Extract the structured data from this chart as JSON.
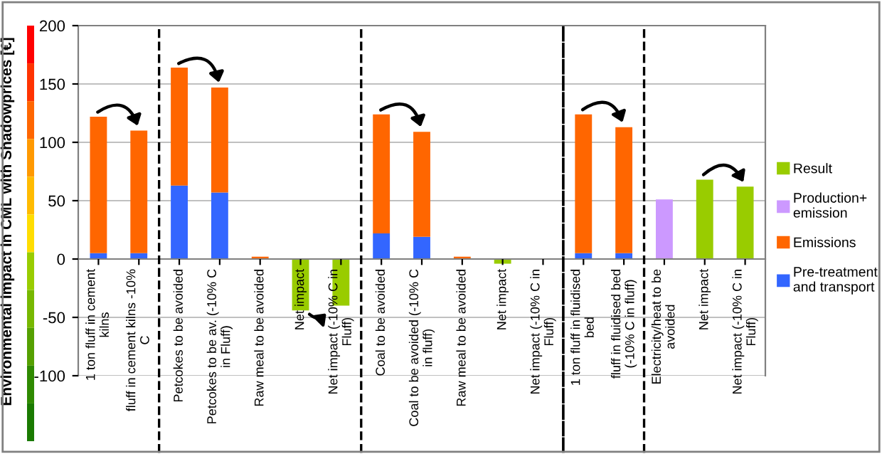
{
  "chart_data": {
    "type": "bar",
    "stacked": true,
    "ylabel": "Environmental impact in CML with Shadowprices [€]",
    "categories": [
      "1 ton fluff in cement kilns",
      "fluff in cement kilns -10% C",
      "Petcokes to be avoided",
      "Petcokes to be av. (-10% C in Fluff)",
      "Raw meal to be avoided",
      "Net impact",
      "Net impact (-10% C in Fluff)",
      "Coal to be avoided",
      "Coal to be avoided (-10% C in fluff)",
      "Raw meal to be avoided",
      "Net impact",
      "Net impact (-10% C in Fluff)",
      "1 ton fluff in fluidised bed",
      "fluff in fluidised bed (-10% C in fluff)",
      "Electricity/heat to be avoided",
      "Net impact",
      "Net impact (-10% C in Fluff)"
    ],
    "series": [
      {
        "name": "Pre-treatment and transport",
        "color": "#3366ff",
        "values": [
          5,
          5,
          63,
          57,
          0,
          0,
          0,
          22,
          19,
          0,
          0,
          0,
          5,
          5,
          0,
          0,
          0
        ]
      },
      {
        "name": "Emissions",
        "color": "#ff6600",
        "values": [
          117,
          105,
          101,
          90,
          2,
          0,
          0,
          102,
          90,
          2,
          0,
          0,
          119,
          108,
          0,
          0,
          0
        ]
      },
      {
        "name": "Production+ emission",
        "color": "#cc99ff",
        "values": [
          0,
          0,
          0,
          0,
          0,
          0,
          0,
          0,
          0,
          0,
          0,
          0,
          0,
          0,
          51,
          0,
          0
        ]
      },
      {
        "name": "Result",
        "color": "#99cc00",
        "values": [
          0,
          0,
          0,
          0,
          0,
          -44,
          -40,
          0,
          0,
          0,
          -4,
          null,
          0,
          0,
          0,
          68,
          62
        ]
      }
    ],
    "ylim": [
      -100,
      200
    ],
    "yticks": [
      -100,
      -50,
      0,
      50,
      100,
      150,
      200
    ],
    "grid": "y",
    "legend": "right"
  }
}
